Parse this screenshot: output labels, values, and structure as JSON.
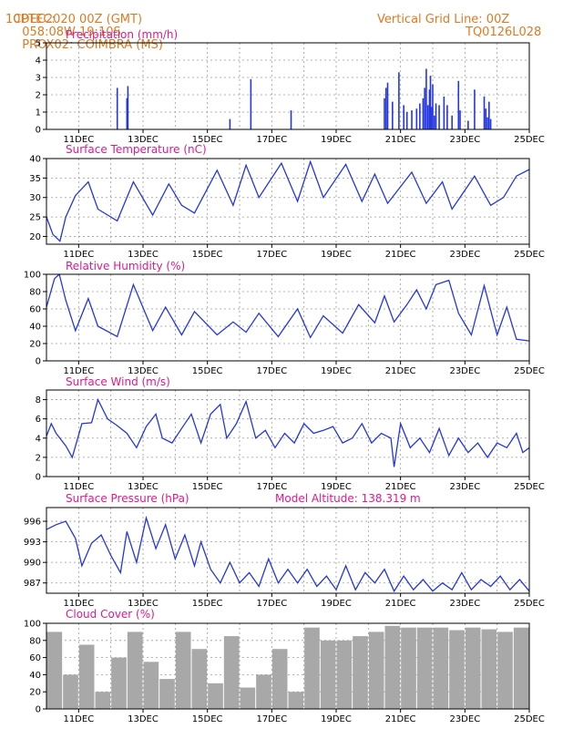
{
  "header": {
    "source": "CPTEC:",
    "coords": "058:08W-19:10S",
    "location": "PROX02: COIMBRA (MS)",
    "run": "10DEC2020 00Z (GMT)",
    "grid_note": "Vertical Grid Line: 00Z",
    "model_code": "TQ0126L028"
  },
  "colors": {
    "header": "#e07a1f",
    "title": "#e0198c",
    "line": "#2436e0",
    "bar": "#2436e0",
    "cloud": "#a8a8a8",
    "grid": "#9a9a9a"
  },
  "x_axis": {
    "tick_labels": [
      "11DEC",
      "13DEC",
      "15DEC",
      "17DEC",
      "19DEC",
      "21DEC",
      "23DEC",
      "25DEC"
    ],
    "tick_days": [
      1,
      3,
      5,
      7,
      9,
      11,
      13,
      15
    ],
    "range_days": [
      0,
      15
    ],
    "start": "10DEC2020 00Z"
  },
  "chart_data": [
    {
      "id": "precip",
      "type": "bar",
      "title": "Precipitation (mm/h)",
      "ylim": [
        0,
        5
      ],
      "yticks": [
        0,
        1,
        2,
        3,
        4,
        5
      ],
      "x_days": [
        2.2,
        2.5,
        2.53,
        5.7,
        6.35,
        7.6,
        10.5,
        10.55,
        10.6,
        10.75,
        10.95,
        11.1,
        11.2,
        11.35,
        11.5,
        11.6,
        11.7,
        11.75,
        11.8,
        11.85,
        11.9,
        11.93,
        11.97,
        12.0,
        12.05,
        12.1,
        12.2,
        12.35,
        12.45,
        12.6,
        12.8,
        12.85,
        13.1,
        13.3,
        13.6,
        13.65,
        13.7,
        13.75,
        13.8
      ],
      "values": [
        2.4,
        1.8,
        2.5,
        0.6,
        2.9,
        1.1,
        1.8,
        2.4,
        2.7,
        1.6,
        3.3,
        1.4,
        1.0,
        1.1,
        1.2,
        1.5,
        1.8,
        2.4,
        3.5,
        1.4,
        2.3,
        3.1,
        1.3,
        2.6,
        0.8,
        1.5,
        1.4,
        1.9,
        1.4,
        0.8,
        2.8,
        1.1,
        0.5,
        2.3,
        1.9,
        1.2,
        0.7,
        1.6,
        0.6
      ]
    },
    {
      "id": "temp",
      "type": "line",
      "title": "Surface Temperature (nC)",
      "ylim": [
        18,
        40
      ],
      "yticks": [
        20,
        25,
        30,
        35,
        40
      ],
      "x_days": [
        0,
        0.2,
        0.42,
        0.6,
        0.9,
        1.3,
        1.6,
        2.2,
        2.7,
        3.3,
        3.8,
        4.2,
        4.6,
        5.3,
        5.8,
        6.2,
        6.6,
        7.3,
        7.8,
        8.2,
        8.6,
        9.3,
        9.8,
        10.2,
        10.6,
        11.35,
        11.8,
        12.3,
        12.6,
        13.3,
        13.8,
        14.2,
        14.6,
        15.0
      ],
      "values": [
        25,
        20.5,
        18.8,
        25,
        30.5,
        34,
        27,
        24,
        34,
        25.5,
        33.5,
        28,
        26,
        37,
        28,
        38.3,
        30,
        38.8,
        29,
        39.2,
        30,
        38.5,
        29,
        36,
        28.5,
        36.5,
        28.5,
        34,
        27,
        35.5,
        28,
        30,
        35.5,
        37.2
      ]
    },
    {
      "id": "rh",
      "type": "line",
      "title": "Relative Humidity (%)",
      "ylim": [
        0,
        100
      ],
      "yticks": [
        0,
        20,
        40,
        60,
        80,
        100
      ],
      "x_days": [
        0,
        0.25,
        0.4,
        0.6,
        0.9,
        1.3,
        1.6,
        2.2,
        2.7,
        3.3,
        3.7,
        4.2,
        4.6,
        5.3,
        5.8,
        6.2,
        6.6,
        7.2,
        7.8,
        8.2,
        8.6,
        9.2,
        9.7,
        10.2,
        10.5,
        10.8,
        11.2,
        11.5,
        11.8,
        12.1,
        12.5,
        12.8,
        13.2,
        13.6,
        14.0,
        14.3,
        14.6,
        15.0
      ],
      "values": [
        62,
        95,
        100,
        70,
        35,
        72,
        40,
        28,
        88,
        35,
        62,
        30,
        57,
        30,
        45,
        33,
        55,
        28,
        60,
        27,
        52,
        32,
        65,
        44,
        75,
        45,
        65,
        82,
        60,
        88,
        93,
        55,
        30,
        87,
        30,
        62,
        25,
        23
      ]
    },
    {
      "id": "wind",
      "type": "line",
      "title": "Surface Wind (m/s)",
      "ylim": [
        0,
        9
      ],
      "yticks": [
        0,
        2,
        4,
        6,
        8
      ],
      "x_days": [
        0,
        0.15,
        0.3,
        0.6,
        0.8,
        1.1,
        1.4,
        1.6,
        1.9,
        2.2,
        2.5,
        2.8,
        3.1,
        3.4,
        3.6,
        3.9,
        4.2,
        4.5,
        4.8,
        5.1,
        5.4,
        5.6,
        5.9,
        6.2,
        6.5,
        6.8,
        7.1,
        7.4,
        7.7,
        8.0,
        8.3,
        8.6,
        8.9,
        9.2,
        9.5,
        9.8,
        10.1,
        10.4,
        10.7,
        10.8,
        11.0,
        11.3,
        11.6,
        11.9,
        12.2,
        12.5,
        12.8,
        13.1,
        13.4,
        13.7,
        14.0,
        14.3,
        14.6,
        14.8,
        15.0
      ],
      "values": [
        4.2,
        5.5,
        4.5,
        3.2,
        2.0,
        5.5,
        5.6,
        8.0,
        6.0,
        5.3,
        4.5,
        3.0,
        5.2,
        6.5,
        4.0,
        3.5,
        5.0,
        6.5,
        3.5,
        6.5,
        7.5,
        4.0,
        5.5,
        7.8,
        4.0,
        4.8,
        3.0,
        4.5,
        3.5,
        5.5,
        4.5,
        4.8,
        5.2,
        3.5,
        4.0,
        5.5,
        3.5,
        4.5,
        4.0,
        1.0,
        5.5,
        3.0,
        4.0,
        2.5,
        5.0,
        2.2,
        4.0,
        2.5,
        3.5,
        2.0,
        3.5,
        3.0,
        4.5,
        2.5,
        3.0
      ]
    },
    {
      "id": "pres",
      "type": "line",
      "title": "Surface Pressure (hPa)",
      "annotation": "Model Altitude: 138.319  m",
      "ylim": [
        985.5,
        998
      ],
      "yticks": [
        987,
        990,
        993,
        996
      ],
      "x_days": [
        0,
        0.3,
        0.6,
        0.9,
        1.1,
        1.4,
        1.7,
        2.0,
        2.3,
        2.5,
        2.8,
        3.1,
        3.4,
        3.7,
        4.0,
        4.3,
        4.6,
        4.8,
        5.1,
        5.4,
        5.7,
        6.0,
        6.3,
        6.6,
        6.9,
        7.2,
        7.5,
        7.8,
        8.1,
        8.4,
        8.7,
        9.0,
        9.3,
        9.6,
        9.9,
        10.2,
        10.5,
        10.8,
        11.1,
        11.4,
        11.7,
        12.0,
        12.3,
        12.6,
        12.9,
        13.2,
        13.5,
        13.8,
        14.1,
        14.4,
        14.7,
        15.0
      ],
      "values": [
        994.8,
        995.5,
        996.0,
        993.5,
        989.5,
        992.8,
        994.0,
        991.0,
        988.5,
        994.5,
        990.0,
        996.5,
        992.0,
        995.5,
        990.5,
        994.0,
        989.5,
        993.0,
        989.0,
        987.0,
        990.0,
        987.0,
        988.5,
        986.5,
        990.5,
        987.0,
        989.0,
        987.0,
        989.0,
        986.5,
        988.0,
        986.0,
        989.5,
        986.0,
        988.5,
        987.0,
        989.0,
        985.8,
        988.0,
        986.0,
        987.5,
        985.8,
        987.0,
        986.0,
        988.5,
        986.0,
        987.5,
        986.5,
        988.0,
        986.0,
        987.5,
        985.8
      ]
    },
    {
      "id": "cloud",
      "type": "bar",
      "title": "Cloud Cover (%)",
      "ylim": [
        0,
        100
      ],
      "yticks": [
        0,
        20,
        40,
        60,
        80,
        100
      ],
      "x_days": [
        0,
        0.5,
        1.0,
        1.5,
        2.0,
        2.5,
        3.0,
        3.5,
        4.0,
        4.5,
        5.0,
        5.5,
        6.0,
        6.5,
        7.0,
        7.5,
        8.0,
        8.5,
        9.0,
        9.5,
        10.0,
        10.5,
        11.0,
        11.5,
        12.0,
        12.5,
        13.0,
        13.5,
        14.0,
        14.5
      ],
      "values": [
        90,
        40,
        75,
        20,
        60,
        90,
        55,
        35,
        90,
        70,
        30,
        85,
        25,
        40,
        70,
        20,
        95,
        80,
        80,
        85,
        90,
        97,
        95,
        95,
        95,
        92,
        95,
        93,
        90,
        95
      ]
    }
  ]
}
